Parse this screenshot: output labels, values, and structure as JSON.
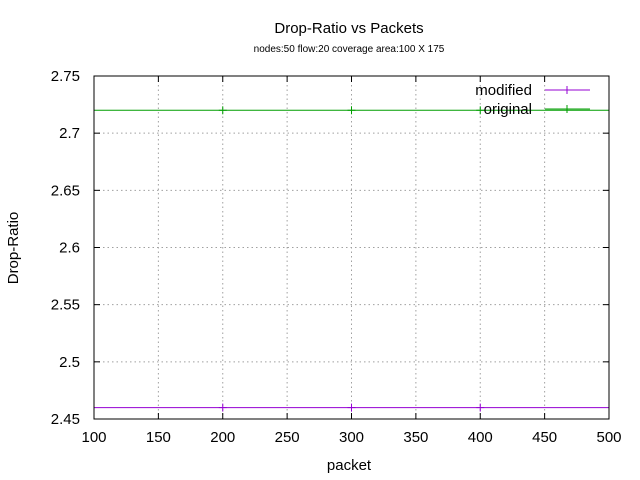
{
  "chart_data": {
    "type": "line",
    "title": "Drop-Ratio vs Packets",
    "subtitle": "nodes:50  flow:20  coverage area:100 X 175",
    "xlabel": "packet",
    "ylabel": "Drop-Ratio",
    "xlim": [
      100,
      500
    ],
    "ylim": [
      2.45,
      2.75
    ],
    "xticks": [
      "100",
      "150",
      "200",
      "250",
      "300",
      "350",
      "400",
      "450",
      "500"
    ],
    "yticks": [
      "2.45",
      "2.5",
      "2.55",
      "2.6",
      "2.65",
      "2.7",
      "2.75"
    ],
    "grid": true,
    "legend_position": "top-right",
    "series": [
      {
        "name": "modified",
        "color": "#9400d3",
        "x": [
          100,
          200,
          300,
          400,
          500
        ],
        "y": [
          2.46,
          2.46,
          2.46,
          2.46,
          2.46
        ]
      },
      {
        "name": "original",
        "color": "#009e00",
        "x": [
          100,
          200,
          300,
          400,
          500
        ],
        "y": [
          2.72,
          2.72,
          2.72,
          2.72,
          2.72
        ]
      }
    ]
  }
}
